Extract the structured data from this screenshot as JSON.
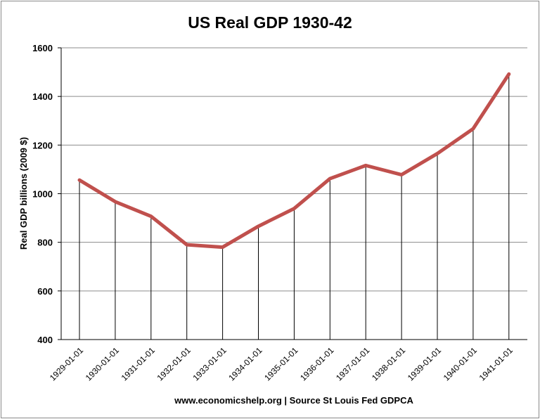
{
  "chart_data": {
    "type": "line",
    "title": "US Real GDP 1930-42",
    "ylabel": "Real GDP billions (2009 $)",
    "xlabel": "www.economicshelp.org | Source St Louis Fed GDPCA",
    "categories": [
      "1929-01-01",
      "1930-01-01",
      "1931-01-01",
      "1932-01-01",
      "1933-01-01",
      "1934-01-01",
      "1935-01-01",
      "1936-01-01",
      "1937-01-01",
      "1938-01-01",
      "1939-01-01",
      "1940-01-01",
      "1941-01-01"
    ],
    "values": [
      1056,
      967,
      907,
      790,
      780,
      866,
      939,
      1062,
      1116,
      1078,
      1165,
      1267,
      1492
    ],
    "ylim": [
      400,
      1600
    ],
    "yticks": [
      400,
      600,
      800,
      1000,
      1200,
      1400,
      1600
    ],
    "grid": true,
    "drop_lines": true,
    "line_color": "#c0504d"
  }
}
